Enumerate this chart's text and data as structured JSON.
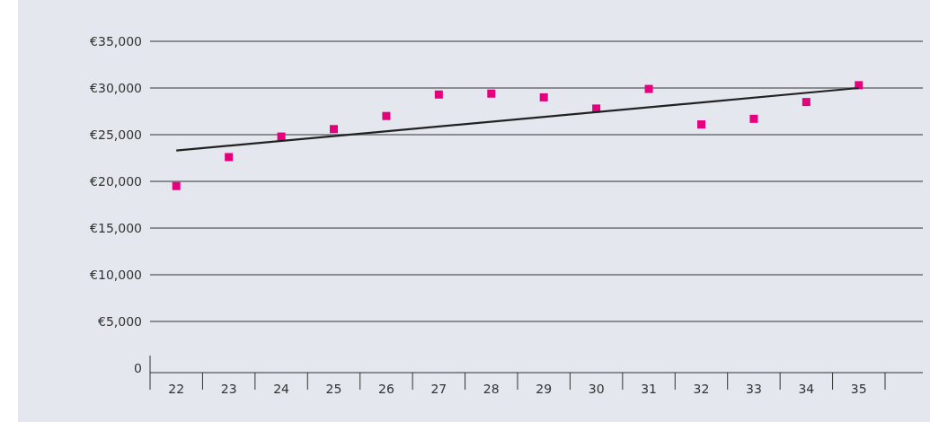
{
  "chart_data": {
    "type": "scatter",
    "categories": [
      "22",
      "23",
      "24",
      "25",
      "26",
      "27",
      "28",
      "29",
      "30",
      "31",
      "32",
      "33",
      "34",
      "35"
    ],
    "series": [
      {
        "color": "#e5007e",
        "values": [
          19500,
          22600,
          24800,
          25600,
          27000,
          29300,
          29400,
          29000,
          27800,
          29900,
          26100,
          26700,
          28500,
          30300
        ]
      },
      {
        "type": "line",
        "color": "#222222",
        "x": [
          "22",
          "35"
        ],
        "values": [
          23300,
          30000
        ],
        "marker": "none"
      }
    ],
    "ylim": [
      0,
      35000
    ],
    "yticks": [
      {
        "value": 0,
        "label": "0"
      },
      {
        "value": 5000,
        "label": "€5,000"
      },
      {
        "value": 10000,
        "label": "€10,000"
      },
      {
        "value": 15000,
        "label": "€15,000"
      },
      {
        "value": 20000,
        "label": "€20,000"
      },
      {
        "value": 25000,
        "label": "€25,000"
      },
      {
        "value": 30000,
        "label": "€30,000"
      },
      {
        "value": 35000,
        "label": "€35,000"
      }
    ],
    "grid": "y",
    "marker": "square"
  }
}
